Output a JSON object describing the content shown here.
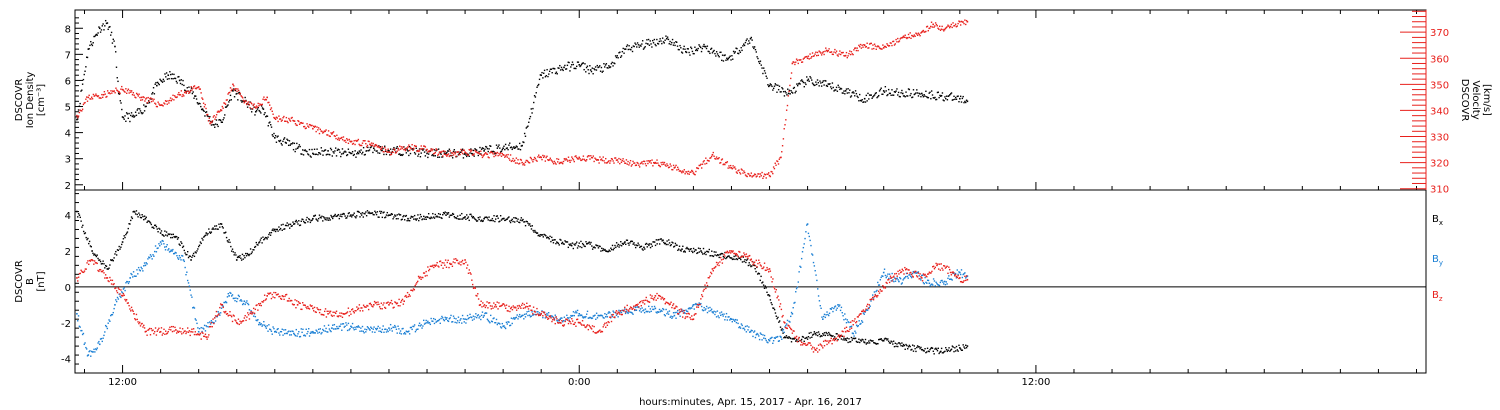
{
  "xlabel": "hours:minutes, Apr. 15, 2017 - Apr. 16, 2017",
  "x_ticks": [
    {
      "hours": 12,
      "label": "12:00"
    },
    {
      "hours": 24,
      "label": "0:00"
    },
    {
      "hours": 36,
      "label": "12:00"
    }
  ],
  "x_range_hours": [
    10.75,
    46.25
  ],
  "chart_data": [
    {
      "type": "scatter",
      "ylabel_left": [
        "DSCOVR",
        "Ion Density",
        "[cm⁻³]"
      ],
      "ylabel_right": [
        "DSCOVR",
        "Velocity",
        "[km/s]"
      ],
      "ylim_left": [
        1.8,
        8.7
      ],
      "ylim_right": [
        309.5,
        378.5
      ],
      "left_ticks": [
        2,
        3,
        4,
        5,
        6,
        7,
        8
      ],
      "right_ticks": [
        310,
        320,
        330,
        340,
        350,
        360,
        370
      ],
      "colors": {
        "density": "#000000",
        "velocity": "#e8201c"
      },
      "series": [
        {
          "axis": "left",
          "x": [
            10.8,
            11.1,
            11.4,
            11.6,
            11.8,
            11.9,
            12.0,
            12.3,
            12.6,
            12.9,
            13.2,
            13.5,
            13.9,
            14.1,
            14.4,
            14.6,
            14.9,
            15.2,
            15.5,
            15.7,
            16.0,
            16.3,
            16.6,
            17.0,
            17.4,
            17.8,
            18.2,
            18.6,
            19.0,
            19.5,
            20.0,
            20.5,
            21.0,
            21.5,
            22.0,
            22.5,
            23.0,
            23.6,
            24.0,
            24.3,
            24.8,
            25.2,
            25.8,
            26.3,
            26.8,
            27.3,
            27.9,
            28.5,
            29.0,
            29.5,
            30.0,
            30.5,
            31.0,
            31.5,
            32.0,
            32.5,
            33.0,
            33.5,
            34.0,
            34.2
          ],
          "y": [
            4.5,
            7.2,
            8.0,
            8.2,
            7.3,
            5.5,
            4.6,
            4.6,
            5.0,
            5.8,
            6.2,
            6.0,
            5.4,
            4.9,
            4.3,
            4.4,
            5.6,
            5.2,
            4.8,
            4.9,
            3.8,
            3.6,
            3.4,
            3.2,
            3.3,
            3.2,
            3.2,
            3.4,
            3.3,
            3.3,
            3.2,
            3.2,
            3.2,
            3.3,
            3.4,
            3.5,
            6.2,
            6.5,
            6.6,
            6.4,
            6.5,
            7.2,
            7.4,
            7.6,
            7.1,
            7.3,
            6.8,
            7.6,
            5.8,
            5.5,
            6.0,
            5.8,
            5.6,
            5.3,
            5.6,
            5.5,
            5.5,
            5.4,
            5.3,
            5.2
          ]
        },
        {
          "axis": "right",
          "x": [
            10.8,
            11.1,
            11.5,
            12.0,
            12.5,
            13.0,
            13.5,
            14.0,
            14.3,
            14.6,
            14.9,
            15.2,
            15.5,
            15.8,
            16.0,
            16.5,
            17.0,
            17.5,
            18.0,
            18.5,
            19.0,
            19.5,
            20.0,
            20.5,
            21.0,
            21.5,
            22.0,
            22.5,
            23.0,
            23.5,
            24.0,
            24.5,
            25.0,
            25.5,
            26.0,
            26.5,
            27.0,
            27.5,
            28.0,
            28.5,
            29.0,
            29.3,
            29.6,
            30.0,
            30.5,
            31.0,
            31.5,
            32.0,
            32.5,
            33.0,
            33.3,
            33.6,
            34.0,
            34.2
          ],
          "y": [
            338,
            345,
            346,
            348,
            345,
            342,
            346,
            349,
            335,
            340,
            350,
            343,
            341,
            345,
            337,
            336,
            333,
            331,
            328,
            327,
            324,
            326,
            325,
            323,
            324,
            323,
            323,
            320,
            322,
            320,
            322,
            321,
            321,
            319,
            320,
            318,
            316,
            323,
            318,
            315,
            315,
            322,
            358,
            360,
            363,
            361,
            365,
            364,
            368,
            370,
            373,
            371,
            374,
            374
          ]
        }
      ]
    },
    {
      "type": "scatter",
      "ylabel_left": [
        "DSCOVR",
        "B",
        "[nT]"
      ],
      "ylim": [
        -4.8,
        5.4
      ],
      "left_ticks": [
        -4,
        -2,
        0,
        2,
        4
      ],
      "zero_line": true,
      "legend": "right",
      "series": [
        {
          "name": "B<sub>x</sub>",
          "label_main": "B",
          "label_sub": "x",
          "color": "#000000",
          "x": [
            10.8,
            11.2,
            11.6,
            12.0,
            12.3,
            12.6,
            13.0,
            13.4,
            13.8,
            14.2,
            14.6,
            15.0,
            15.3,
            15.6,
            16.0,
            16.5,
            17.0,
            17.5,
            18.0,
            18.5,
            19.0,
            19.5,
            20.0,
            20.5,
            21.0,
            21.5,
            22.0,
            22.5,
            22.9,
            23.3,
            23.8,
            24.2,
            24.7,
            25.2,
            25.7,
            26.2,
            26.7,
            27.2,
            27.7,
            28.2,
            28.6,
            29.0,
            29.4,
            29.8,
            30.2,
            30.6,
            31.0,
            31.5,
            32.0,
            32.5,
            33.0,
            33.5,
            34.0,
            34.2
          ],
          "y": [
            4.2,
            2.0,
            1.0,
            2.5,
            4.2,
            3.8,
            3.0,
            2.8,
            1.5,
            3.0,
            3.5,
            1.5,
            1.8,
            2.5,
            3.2,
            3.5,
            3.8,
            3.9,
            4.0,
            4.1,
            4.0,
            3.8,
            3.9,
            4.0,
            3.9,
            3.8,
            3.8,
            3.7,
            3.0,
            2.6,
            2.3,
            2.4,
            2.0,
            2.5,
            2.2,
            2.6,
            2.1,
            2.0,
            1.8,
            1.6,
            1.2,
            -0.5,
            -2.8,
            -3.0,
            -2.6,
            -2.7,
            -2.9,
            -3.1,
            -3.0,
            -3.3,
            -3.5,
            -3.6,
            -3.4,
            -3.3
          ]
        },
        {
          "name": "B<sub>y</sub>",
          "label_main": "B",
          "label_sub": "y",
          "color": "#1a7fd4",
          "x": [
            10.8,
            11.1,
            11.4,
            11.8,
            12.2,
            12.6,
            13.0,
            13.3,
            13.6,
            14.0,
            14.4,
            14.8,
            15.2,
            15.6,
            16.0,
            16.5,
            17.0,
            17.5,
            18.0,
            18.5,
            19.0,
            19.5,
            20.0,
            20.5,
            21.0,
            21.5,
            22.0,
            22.5,
            23.0,
            23.5,
            24.0,
            24.5,
            25.0,
            25.5,
            26.0,
            26.5,
            27.0,
            27.5,
            28.0,
            28.5,
            29.0,
            29.3,
            29.6,
            30.0,
            30.4,
            30.8,
            31.2,
            31.6,
            32.0,
            32.4,
            32.8,
            33.2,
            33.6,
            34.0,
            34.2
          ],
          "y": [
            -1.5,
            -3.8,
            -3.2,
            -1.0,
            0.5,
            1.2,
            2.5,
            2.0,
            1.5,
            -2.5,
            -2.0,
            -0.5,
            -0.8,
            -2.0,
            -2.5,
            -2.6,
            -2.5,
            -2.3,
            -2.2,
            -2.4,
            -2.3,
            -2.5,
            -2.0,
            -1.8,
            -1.8,
            -1.6,
            -2.2,
            -1.6,
            -1.5,
            -1.8,
            -1.5,
            -1.6,
            -1.5,
            -1.3,
            -1.2,
            -1.6,
            -1.0,
            -1.4,
            -1.8,
            -2.5,
            -3.0,
            -2.8,
            -1.5,
            3.5,
            -1.8,
            -1.0,
            -2.6,
            -1.2,
            0.8,
            0.3,
            0.8,
            0.2,
            0.3,
            0.8,
            0.6
          ]
        },
        {
          "name": "B<sub>z</sub>",
          "label_main": "B",
          "label_sub": "z",
          "color": "#e8201c",
          "x": [
            10.8,
            11.2,
            11.6,
            12.0,
            12.3,
            12.6,
            13.0,
            13.4,
            13.8,
            14.2,
            14.6,
            15.0,
            15.4,
            15.8,
            16.2,
            16.6,
            17.0,
            17.4,
            17.8,
            18.2,
            18.6,
            19.0,
            19.4,
            19.8,
            20.2,
            20.6,
            21.0,
            21.4,
            21.8,
            22.2,
            22.6,
            23.0,
            23.5,
            24.0,
            24.5,
            25.0,
            25.5,
            26.0,
            26.5,
            27.0,
            27.5,
            28.0,
            28.5,
            29.0,
            29.4,
            29.8,
            30.2,
            30.6,
            31.0,
            31.4,
            31.8,
            32.2,
            32.6,
            33.0,
            33.4,
            33.8,
            34.0,
            34.2
          ],
          "y": [
            0.5,
            1.5,
            0.5,
            -0.5,
            -1.5,
            -2.5,
            -2.5,
            -2.4,
            -2.5,
            -2.8,
            -1.0,
            -2.0,
            -1.5,
            -0.5,
            -0.5,
            -1.0,
            -1.2,
            -1.5,
            -1.5,
            -1.2,
            -1.0,
            -1.0,
            -0.8,
            0.5,
            1.2,
            1.3,
            1.5,
            -1.0,
            -1.0,
            -1.2,
            -1.1,
            -1.5,
            -2.0,
            -2.0,
            -2.5,
            -1.5,
            -1.0,
            -0.5,
            -1.2,
            -1.8,
            1.0,
            2.0,
            1.5,
            1.0,
            -2.0,
            -3.0,
            -3.5,
            -3.0,
            -2.5,
            -1.5,
            -0.5,
            0.5,
            1.0,
            0.5,
            1.2,
            0.8,
            0.5,
            0.4
          ]
        }
      ]
    }
  ]
}
